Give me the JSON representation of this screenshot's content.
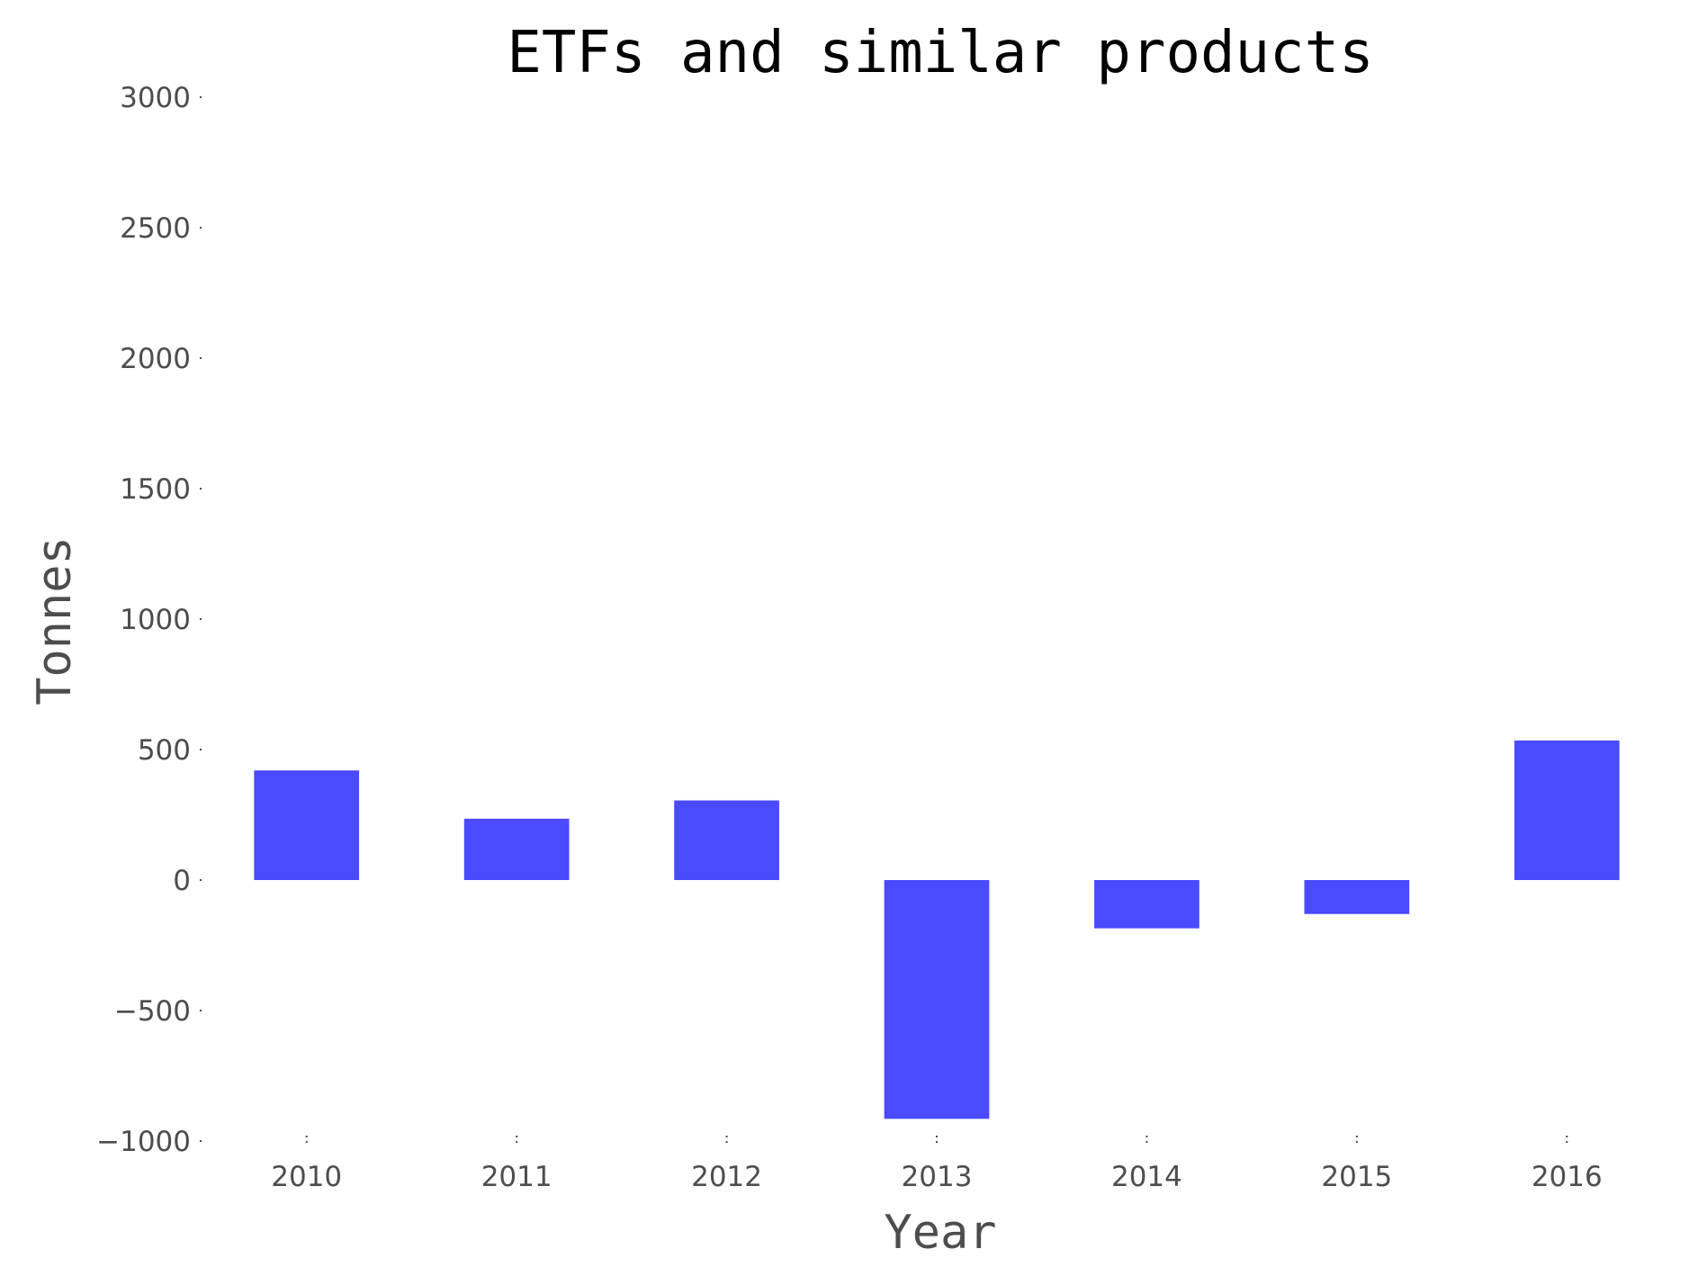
{
  "chart_data": {
    "type": "bar",
    "title": "ETFs and similar products",
    "xlabel": "Year",
    "ylabel": "Tonnes",
    "categories": [
      "2010",
      "2011",
      "2012",
      "2013",
      "2014",
      "2015",
      "2016"
    ],
    "values": [
      420,
      235,
      305,
      -915,
      -185,
      -130,
      535
    ],
    "ylim": [
      -1000,
      3000
    ],
    "yticks": [
      "3000",
      "2500",
      "2000",
      "1500",
      "1000",
      "500",
      "0",
      "−500",
      "−1000"
    ],
    "grid": false,
    "legend": "none",
    "bar_color": "#4a4aff"
  }
}
